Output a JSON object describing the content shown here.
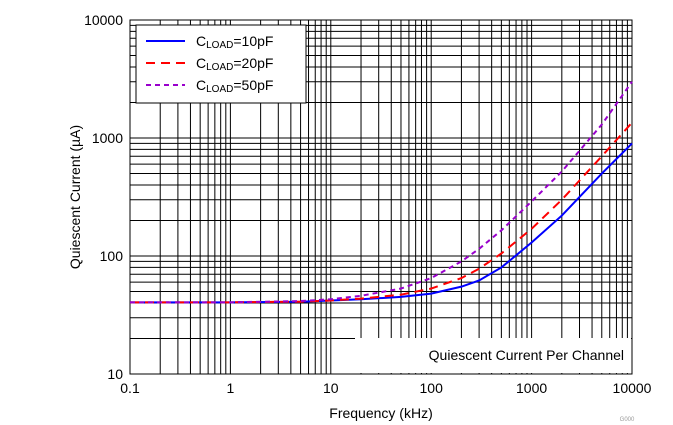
{
  "chart_data": {
    "type": "line",
    "x_scale": "log",
    "y_scale": "log",
    "xlim": [
      0.1,
      10000
    ],
    "ylim": [
      10,
      10000
    ],
    "xlabel": "Frequency (kHz)",
    "ylabel": "Quiescent Current (µA)",
    "x_ticks": [
      "0.1",
      "1",
      "10",
      "100",
      "1000",
      "10000"
    ],
    "y_ticks": [
      "10",
      "100",
      "1000",
      "10000"
    ],
    "grid": true,
    "legend_position": "top-left",
    "annotation": "Quiescent Current Per Channel",
    "figure_code": "G000",
    "series": [
      {
        "label_main": "C",
        "label_sub": "LOAD",
        "label_tail": "=10pF",
        "color": "#0000ff",
        "dash": "solid",
        "x": [
          0.1,
          1,
          5,
          10,
          20,
          50,
          100,
          200,
          300,
          500,
          1000,
          2000,
          5000,
          10000
        ],
        "y": [
          40.5,
          40.5,
          41,
          42,
          43,
          45,
          48,
          55,
          62,
          80,
          130,
          220,
          500,
          900
        ]
      },
      {
        "label_main": "C",
        "label_sub": "LOAD",
        "label_tail": "=20pF",
        "color": "#ff0000",
        "dash": "dashed",
        "x": [
          0.1,
          1,
          5,
          10,
          20,
          50,
          100,
          200,
          300,
          500,
          1000,
          2000,
          5000,
          10000
        ],
        "y": [
          40.5,
          40.5,
          41,
          42,
          43.5,
          47,
          53,
          65,
          78,
          105,
          170,
          300,
          700,
          1350
        ]
      },
      {
        "label_main": "C",
        "label_sub": "LOAD",
        "label_tail": "=50pF",
        "color": "#9900cc",
        "dash": "dashed-fine",
        "x": [
          0.1,
          1,
          5,
          10,
          20,
          50,
          100,
          200,
          300,
          500,
          1000,
          2000,
          5000,
          10000
        ],
        "y": [
          40.5,
          40.5,
          41.5,
          43,
          46,
          53,
          65,
          90,
          115,
          165,
          290,
          520,
          1300,
          3000
        ]
      }
    ]
  }
}
